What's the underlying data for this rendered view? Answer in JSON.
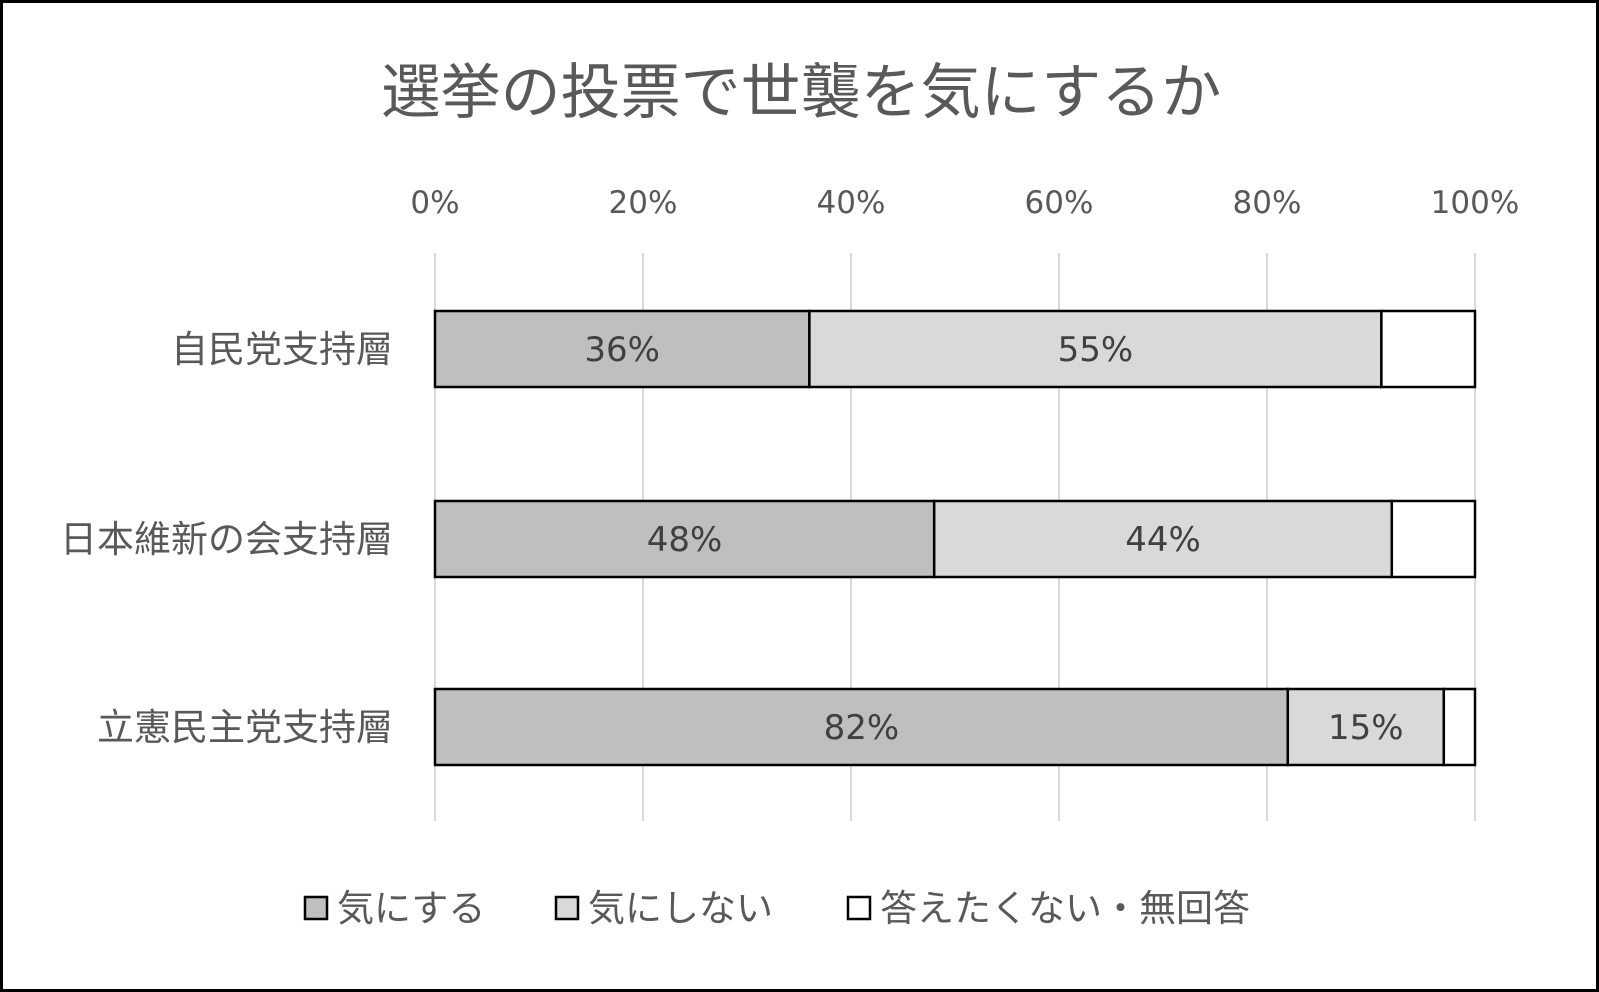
{
  "chart_data": {
    "type": "bar",
    "orientation": "horizontal",
    "stacked": "percent",
    "title": "選挙の投票で世襲を気にするか",
    "categories": [
      "自民党支持層",
      "日本維新の会支持層",
      "立憲民主党支持層"
    ],
    "series": [
      {
        "name": "気にする",
        "values": [
          36,
          48,
          82
        ],
        "labels": [
          "36%",
          "48%",
          "82%"
        ],
        "color": "#bfbfbf"
      },
      {
        "name": "気にしない",
        "values": [
          55,
          44,
          15
        ],
        "labels": [
          "55%",
          "44%",
          "15%"
        ],
        "color": "#d9d9d9"
      },
      {
        "name": "答えたくない・無回答",
        "values": [
          9,
          8,
          3
        ],
        "labels": [
          "",
          "",
          ""
        ],
        "color": "#ffffff"
      }
    ],
    "xlim": [
      0,
      100
    ],
    "x_ticks": [
      0,
      20,
      40,
      60,
      80,
      100
    ],
    "x_tick_labels": [
      "0%",
      "20%",
      "40%",
      "60%",
      "80%",
      "100%"
    ],
    "x_axis_position": "top",
    "grid": true,
    "legend_position": "bottom",
    "bar_outline_color": "#000000",
    "grid_color": "#d9d9d9"
  }
}
